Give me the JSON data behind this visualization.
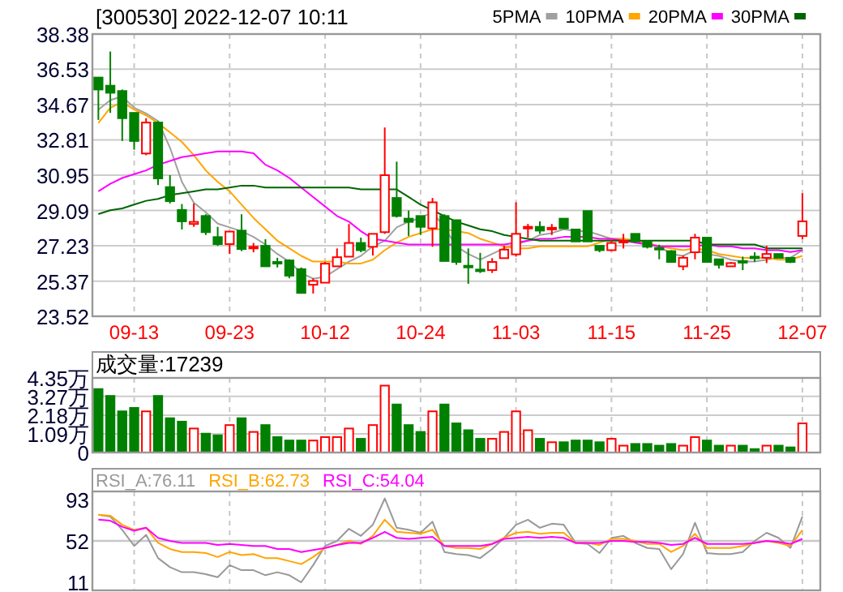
{
  "chart_data": [
    {
      "type": "candlestick",
      "title": "[300530] 2022-12-07 10:11",
      "categories": [
        null,
        null,
        null,
        "09-13",
        null,
        null,
        null,
        null,
        null,
        null,
        null,
        "09-23",
        null,
        null,
        null,
        null,
        null,
        null,
        null,
        "10-12",
        null,
        null,
        null,
        null,
        null,
        null,
        null,
        "10-24",
        null,
        null,
        null,
        null,
        null,
        null,
        null,
        "11-03",
        null,
        null,
        null,
        null,
        null,
        null,
        null,
        "11-15",
        null,
        null,
        null,
        null,
        null,
        null,
        null,
        "11-25",
        null,
        null,
        null,
        null,
        null,
        null,
        null,
        "12-07"
      ],
      "ohlc": [
        [
          36.09,
          36.09,
          33.86,
          35.46
        ],
        [
          35.66,
          37.46,
          34.23,
          35.29
        ],
        [
          35.38,
          35.46,
          32.75,
          33.95
        ],
        [
          34.23,
          34.23,
          32.29,
          32.75
        ],
        [
          32.09,
          33.95,
          32.0,
          33.72
        ],
        [
          33.72,
          33.8,
          30.43,
          30.78
        ],
        [
          30.32,
          30.95,
          29.46,
          29.58
        ],
        [
          29.12,
          29.43,
          28.09,
          28.52
        ],
        [
          28.38,
          29.46,
          28.23,
          28.49
        ],
        [
          28.8,
          28.89,
          27.8,
          27.95
        ],
        [
          27.69,
          28.23,
          27.23,
          27.32
        ],
        [
          27.32,
          27.98,
          26.8,
          27.98
        ],
        [
          28.03,
          28.89,
          26.95,
          27.06
        ],
        [
          27.12,
          27.38,
          26.89,
          27.18
        ],
        [
          27.23,
          27.58,
          26.15,
          26.15
        ],
        [
          26.38,
          26.6,
          26.09,
          26.32
        ],
        [
          26.46,
          26.52,
          25.52,
          25.66
        ],
        [
          26.0,
          26.09,
          24.75,
          24.75
        ],
        [
          25.18,
          25.52,
          24.72,
          25.38
        ],
        [
          25.29,
          26.38,
          25.29,
          26.29
        ],
        [
          26.15,
          27.09,
          26.15,
          26.63
        ],
        [
          26.66,
          28.38,
          26.66,
          27.38
        ],
        [
          27.38,
          27.66,
          26.89,
          27.0
        ],
        [
          27.18,
          27.86,
          26.72,
          27.86
        ],
        [
          27.95,
          33.46,
          27.86,
          30.95
        ],
        [
          29.75,
          31.66,
          28.72,
          28.8
        ],
        [
          28.66,
          29.09,
          27.75,
          28.49
        ],
        [
          28.8,
          28.8,
          27.8,
          28.23
        ],
        [
          28.15,
          29.75,
          27.18,
          29.52
        ],
        [
          28.8,
          28.89,
          26.43,
          26.43
        ],
        [
          28.58,
          28.58,
          26.23,
          26.38
        ],
        [
          26.18,
          27.09,
          25.23,
          26.12
        ],
        [
          25.98,
          26.86,
          25.8,
          25.92
        ],
        [
          25.95,
          26.58,
          25.8,
          26.38
        ],
        [
          26.58,
          27.23,
          26.58,
          27.03
        ],
        [
          26.78,
          29.52,
          26.66,
          27.86
        ],
        [
          28.15,
          28.38,
          27.66,
          28.23
        ],
        [
          28.23,
          28.52,
          27.86,
          28.03
        ],
        [
          28.12,
          28.38,
          27.8,
          28.18
        ],
        [
          28.66,
          28.66,
          28.15,
          28.15
        ],
        [
          28.09,
          28.09,
          27.46,
          27.46
        ],
        [
          29.06,
          29.06,
          27.46,
          27.46
        ],
        [
          27.23,
          27.23,
          26.89,
          27.0
        ],
        [
          27.0,
          27.52,
          26.95,
          27.38
        ],
        [
          27.43,
          27.86,
          27.09,
          27.49
        ],
        [
          27.86,
          27.86,
          27.38,
          27.46
        ],
        [
          27.46,
          27.52,
          27.09,
          27.18
        ],
        [
          27.12,
          27.29,
          26.52,
          27.06
        ],
        [
          26.95,
          27.0,
          26.38,
          26.38
        ],
        [
          26.15,
          26.72,
          25.95,
          26.6
        ],
        [
          26.89,
          27.86,
          26.52,
          27.66
        ],
        [
          27.66,
          27.66,
          26.38,
          26.38
        ],
        [
          26.52,
          26.52,
          26.03,
          26.23
        ],
        [
          26.15,
          26.38,
          26.15,
          26.32
        ],
        [
          26.43,
          26.66,
          25.95,
          26.35
        ],
        [
          26.66,
          26.89,
          26.38,
          26.63
        ],
        [
          26.6,
          27.23,
          26.32,
          26.8
        ],
        [
          26.8,
          26.8,
          26.6,
          26.6
        ],
        [
          26.6,
          26.6,
          26.32,
          26.38
        ],
        [
          27.75,
          30.0,
          27.58,
          28.52
        ]
      ],
      "colors": [
        "#008000",
        "#008000",
        "#008000",
        "#008000",
        "#ff0000",
        "#008000",
        "#008000",
        "#008000",
        "#ff0000",
        "#008000",
        "#008000",
        "#ff0000",
        "#008000",
        "#ff0000",
        "#008000",
        "#008000",
        "#008000",
        "#008000",
        "#ff0000",
        "#ff0000",
        "#ff0000",
        "#ff0000",
        "#008000",
        "#ff0000",
        "#ff0000",
        "#008000",
        "#008000",
        "#008000",
        "#ff0000",
        "#008000",
        "#008000",
        "#008000",
        "#008000",
        "#ff0000",
        "#ff0000",
        "#ff0000",
        "#ff0000",
        "#008000",
        "#ff0000",
        "#008000",
        "#008000",
        "#008000",
        "#008000",
        "#ff0000",
        "#ff0000",
        "#008000",
        "#008000",
        "#008000",
        "#008000",
        "#ff0000",
        "#ff0000",
        "#008000",
        "#008000",
        "#ff0000",
        "#008000",
        "#008000",
        "#ff0000",
        "#008000",
        "#008000",
        "#ff0000"
      ],
      "series": [
        {
          "name": "5PMA",
          "type": "line",
          "color": "#a0a0a0",
          "values": [
            34.4,
            34.9,
            35.1,
            34.5,
            34.2,
            33.8,
            32.4,
            30.6,
            29.5,
            29.0,
            28.4,
            28.2,
            28.0,
            27.7,
            27.3,
            26.8,
            26.4,
            25.8,
            25.5,
            25.6,
            26.0,
            26.4,
            26.7,
            27.2,
            27.5,
            28.2,
            28.5,
            28.7,
            29.0,
            28.2,
            27.2,
            26.8,
            26.5,
            26.8,
            27.1,
            27.3,
            27.5,
            27.8,
            27.9,
            28.1,
            28.0,
            28.0,
            27.8,
            27.6,
            27.6,
            27.5,
            27.3,
            27.2,
            26.8,
            26.7,
            27.0,
            26.8,
            26.7,
            26.5,
            26.4,
            26.4,
            26.5,
            26.6,
            26.6,
            27.0
          ]
        },
        {
          "name": "10PMA",
          "type": "line",
          "color": "#ffa500",
          "values": [
            33.7,
            34.5,
            34.8,
            34.4,
            34.1,
            33.7,
            33.2,
            32.7,
            32.0,
            31.2,
            30.6,
            30.1,
            29.4,
            28.7,
            28.1,
            27.5,
            27.1,
            26.7,
            26.4,
            26.4,
            26.4,
            26.3,
            26.3,
            26.5,
            27.0,
            27.4,
            27.7,
            27.9,
            28.1,
            28.1,
            28.0,
            27.9,
            27.6,
            27.4,
            27.2,
            27.1,
            27.1,
            27.2,
            27.2,
            27.2,
            27.2,
            27.2,
            27.4,
            27.6,
            27.6,
            27.5,
            27.4,
            27.2,
            27.1,
            27.0,
            27.1,
            27.0,
            26.8,
            26.7,
            26.6,
            26.6,
            26.6,
            26.5,
            26.5,
            26.7
          ]
        },
        {
          "name": "20PMA",
          "type": "line",
          "color": "#ff00ff",
          "values": [
            30.1,
            30.5,
            30.8,
            31.0,
            31.2,
            31.5,
            31.7,
            31.9,
            32.0,
            32.1,
            32.2,
            32.2,
            32.2,
            32.1,
            31.5,
            31.2,
            30.8,
            30.3,
            29.8,
            29.3,
            28.8,
            28.5,
            28.0,
            27.6,
            27.5,
            27.4,
            27.3,
            27.3,
            27.3,
            27.3,
            27.3,
            27.3,
            27.3,
            27.3,
            27.3,
            27.4,
            27.5,
            27.6,
            27.6,
            27.7,
            27.7,
            27.7,
            27.6,
            27.6,
            27.5,
            27.4,
            27.3,
            27.2,
            27.2,
            27.2,
            27.2,
            27.3,
            27.2,
            27.2,
            27.1,
            27.1,
            27.0,
            27.0,
            26.9,
            27.0
          ]
        },
        {
          "name": "30PMA",
          "type": "line",
          "color": "#006400",
          "values": [
            28.9,
            29.1,
            29.2,
            29.4,
            29.6,
            29.7,
            29.9,
            30.0,
            30.1,
            30.2,
            30.2,
            30.3,
            30.4,
            30.4,
            30.3,
            30.3,
            30.3,
            30.3,
            30.3,
            30.3,
            30.3,
            30.3,
            30.2,
            30.2,
            30.2,
            30.2,
            29.8,
            29.4,
            29.1,
            28.8,
            28.5,
            28.3,
            28.1,
            28.0,
            27.8,
            27.7,
            27.6,
            27.5,
            27.5,
            27.5,
            27.5,
            27.5,
            27.5,
            27.5,
            27.5,
            27.5,
            27.5,
            27.5,
            27.5,
            27.5,
            27.5,
            27.3,
            27.3,
            27.3,
            27.3,
            27.3,
            27.1,
            27.1,
            27.1,
            27.1
          ]
        }
      ],
      "ylim": [
        23.52,
        38.38
      ],
      "yticks": [
        23.52,
        25.37,
        27.23,
        29.09,
        30.95,
        32.81,
        34.67,
        36.53,
        38.38
      ],
      "grid": true,
      "legend": "top right"
    },
    {
      "type": "bar",
      "title": "成交量:17239",
      "values": [
        3.7,
        3.3,
        2.4,
        2.6,
        2.4,
        3.3,
        2.0,
        1.8,
        1.4,
        1.1,
        1.0,
        1.6,
        2.0,
        1.2,
        1.6,
        0.9,
        0.7,
        0.7,
        0.7,
        0.9,
        0.9,
        1.4,
        0.8,
        1.6,
        3.9,
        2.8,
        1.6,
        1.2,
        2.4,
        2.8,
        1.7,
        1.3,
        0.8,
        0.8,
        1.2,
        2.4,
        1.3,
        0.8,
        0.6,
        0.6,
        0.7,
        0.7,
        0.6,
        0.8,
        0.4,
        0.5,
        0.5,
        0.4,
        0.5,
        0.4,
        0.9,
        0.7,
        0.4,
        0.4,
        0.4,
        0.2,
        0.4,
        0.4,
        0.3,
        1.7
      ],
      "colors": [
        "#008000",
        "#008000",
        "#008000",
        "#008000",
        "#ff0000",
        "#008000",
        "#008000",
        "#008000",
        "#ff0000",
        "#008000",
        "#008000",
        "#ff0000",
        "#008000",
        "#ff0000",
        "#008000",
        "#008000",
        "#008000",
        "#008000",
        "#ff0000",
        "#ff0000",
        "#ff0000",
        "#ff0000",
        "#008000",
        "#ff0000",
        "#ff0000",
        "#008000",
        "#008000",
        "#008000",
        "#ff0000",
        "#008000",
        "#008000",
        "#008000",
        "#008000",
        "#ff0000",
        "#ff0000",
        "#ff0000",
        "#ff0000",
        "#008000",
        "#ff0000",
        "#008000",
        "#008000",
        "#008000",
        "#008000",
        "#ff0000",
        "#ff0000",
        "#008000",
        "#008000",
        "#008000",
        "#008000",
        "#ff0000",
        "#ff0000",
        "#008000",
        "#008000",
        "#ff0000",
        "#008000",
        "#008000",
        "#ff0000",
        "#008000",
        "#008000",
        "#ff0000"
      ],
      "ylim": [
        0,
        4.35
      ],
      "yticks": [
        0,
        {
          "value": 1.09,
          "label": "1.09万"
        },
        {
          "value": 2.18,
          "label": "2.18万"
        },
        {
          "value": 3.27,
          "label": "3.27万"
        },
        {
          "value": 4.35,
          "label": "4.35万"
        }
      ],
      "grid": true,
      "tick_labels": "y"
    },
    {
      "type": "line",
      "series": [
        {
          "name": "RSI_A:76.11",
          "color": "#999999",
          "values": [
            78,
            76,
            63,
            47,
            58,
            35,
            26,
            21,
            21,
            19,
            16,
            28,
            23,
            23,
            18,
            21,
            18,
            11,
            28,
            47,
            52,
            64,
            57,
            68,
            94,
            65,
            63,
            60,
            71,
            41,
            39,
            38,
            35,
            44,
            55,
            68,
            73,
            65,
            69,
            68,
            50,
            49,
            40,
            55,
            57,
            50,
            45,
            44,
            24,
            39,
            70,
            40,
            39,
            39,
            41,
            52,
            60,
            55,
            45,
            76.11
          ]
        },
        {
          "name": "RSI_B:62.73",
          "color": "#ffa500",
          "values": [
            78,
            77,
            68,
            63,
            65,
            50,
            44,
            41,
            41,
            40,
            36,
            41,
            38,
            39,
            35,
            35,
            32,
            29,
            36,
            45,
            48,
            52,
            49,
            57,
            73,
            61,
            60,
            59,
            63,
            47,
            45,
            45,
            44,
            49,
            55,
            60,
            61,
            59,
            60,
            60,
            50,
            50,
            48,
            54,
            54,
            52,
            49,
            49,
            41,
            47,
            59,
            45,
            45,
            45,
            47,
            50,
            52,
            50,
            47,
            62.73
          ]
        },
        {
          "name": "RSI_C:54.04",
          "color": "#ff00ff",
          "values": [
            73,
            72,
            66,
            62,
            65,
            55,
            52,
            50,
            50,
            50,
            48,
            49,
            48,
            47,
            47,
            44,
            44,
            41,
            43,
            45,
            48,
            50,
            50,
            55,
            61,
            55,
            54,
            55,
            56,
            47,
            47,
            47,
            47,
            49,
            54,
            55,
            56,
            55,
            56,
            55,
            50,
            50,
            50,
            52,
            52,
            51,
            51,
            50,
            48,
            49,
            55,
            49,
            49,
            49,
            49,
            50,
            52,
            51,
            49,
            54.04
          ]
        }
      ],
      "ylim": [
        3,
        101
      ],
      "yticks": [
        11,
        52,
        93
      ],
      "ref_lines": [
        {
          "axis": "y",
          "value": 52,
          "color": "#c8c8c8"
        }
      ],
      "grid": "x",
      "legend": "top",
      "tick_labels": "y"
    }
  ]
}
